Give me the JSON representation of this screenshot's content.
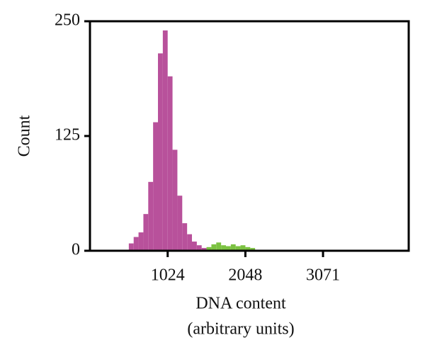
{
  "chart_data": {
    "type": "histogram",
    "ylabel": "Count",
    "xlabel": [
      "DNA content",
      "(arbitrary units)"
    ],
    "bins": [
      512,
      576,
      640,
      704,
      768,
      832,
      896,
      960,
      1024,
      1088,
      1152,
      1216,
      1280,
      1344,
      1408,
      1472,
      1536,
      1600,
      1664,
      1728,
      1792,
      1856,
      1920,
      1984,
      2048,
      2112,
      2176
    ],
    "series": [
      {
        "color": "#b8519b",
        "values": [
          8,
          15,
          20,
          40,
          75,
          140,
          215,
          240,
          190,
          110,
          60,
          30,
          18,
          10,
          6,
          3,
          0,
          0,
          0,
          0,
          0,
          0,
          0,
          0,
          0,
          0
        ]
      },
      {
        "color": "#7cc242",
        "values": [
          0,
          0,
          0,
          0,
          0,
          0,
          0,
          0,
          0,
          0,
          0,
          0,
          0,
          0,
          0,
          0,
          4,
          7,
          9,
          6,
          5,
          7,
          5,
          6,
          4,
          3
        ]
      }
    ],
    "xlim": [
      0,
      4200
    ],
    "xticks": [
      1024,
      2048,
      3071
    ],
    "ylim": [
      0,
      250
    ],
    "yticks": [
      0,
      125,
      250
    ]
  }
}
